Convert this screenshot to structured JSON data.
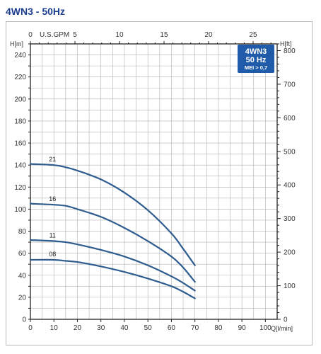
{
  "page": {
    "title": "4WN3 - 50Hz"
  },
  "badge": {
    "line1": "4WN3",
    "line2": "50 Hz",
    "line3": "MEI > 0,7",
    "color": "#1f5ba8"
  },
  "colors": {
    "curve": "#2e5c8f",
    "grid": "#b0b0b0",
    "axis": "#222222",
    "title": "#1d3f8f"
  },
  "chart_data": {
    "type": "line",
    "grid": true,
    "x_bottom": {
      "label": "Q[l/min]",
      "range": [
        0,
        105
      ],
      "ticks": [
        0,
        10,
        20,
        30,
        40,
        50,
        60,
        70,
        80,
        90,
        100
      ]
    },
    "x_top": {
      "label": "U.S.GPM",
      "range": [
        0,
        27.7
      ],
      "ticks": [
        0,
        5,
        10,
        15,
        20,
        25
      ]
    },
    "y_left": {
      "label": "H[m]",
      "range": [
        0,
        250
      ],
      "ticks": [
        0,
        20,
        40,
        60,
        80,
        100,
        120,
        140,
        160,
        180,
        200,
        220,
        240
      ]
    },
    "y_right": {
      "label": "H[ft]",
      "range": [
        0,
        820
      ],
      "ticks": [
        0,
        100,
        200,
        300,
        400,
        500,
        600,
        700,
        800
      ]
    },
    "series": [
      {
        "name": "21",
        "x": [
          0,
          10,
          15,
          20,
          30,
          40,
          50,
          60,
          65,
          70
        ],
        "y": [
          141,
          140,
          138,
          135,
          127,
          115,
          99,
          78,
          64,
          49
        ]
      },
      {
        "name": "16",
        "x": [
          0,
          10,
          15,
          20,
          30,
          40,
          50,
          60,
          65,
          70
        ],
        "y": [
          105,
          104,
          103,
          100,
          93,
          83,
          71,
          57,
          47,
          34
        ]
      },
      {
        "name": "11",
        "x": [
          0,
          10,
          15,
          20,
          30,
          40,
          50,
          60,
          65,
          70
        ],
        "y": [
          72,
          71,
          70,
          68,
          63,
          57,
          49,
          39,
          33,
          26
        ]
      },
      {
        "name": "08",
        "x": [
          0,
          10,
          15,
          20,
          30,
          40,
          50,
          60,
          65,
          70
        ],
        "y": [
          54,
          54,
          53,
          52,
          48,
          43,
          37,
          30,
          25,
          19
        ]
      }
    ]
  }
}
